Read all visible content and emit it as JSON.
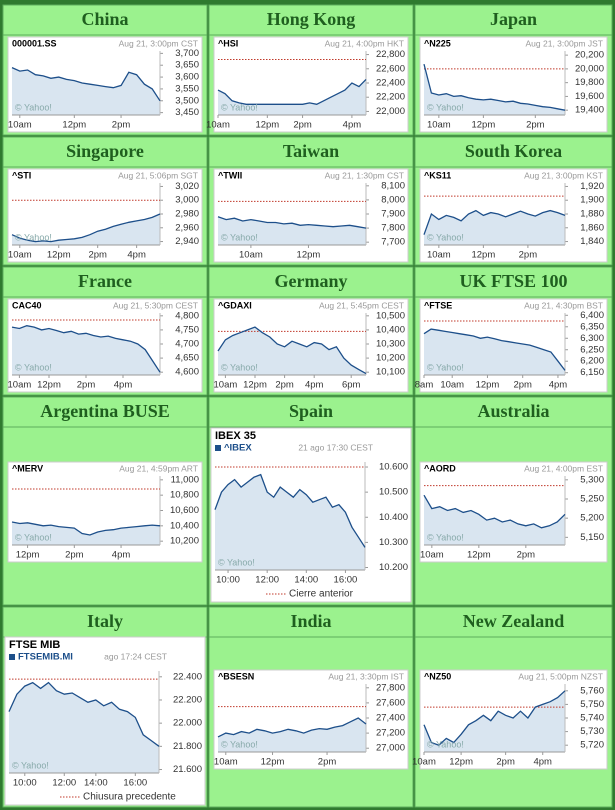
{
  "chart_data": [
    {
      "type": "line",
      "title": "China",
      "symbol": "000001.SS",
      "subtitle": "Aug 21, 3:00pm CST",
      "watermark": "© Yahoo!",
      "values": [
        3640,
        3625,
        3630,
        3610,
        3605,
        3595,
        3600,
        3590,
        3585,
        3575,
        3570,
        3565,
        3560,
        3555,
        3565,
        3620,
        3610,
        3570,
        3550,
        3500
      ],
      "ylim": [
        3440,
        3710
      ],
      "yticks": [
        {
          "value": 3700,
          "label": "3,700"
        },
        {
          "value": 3650,
          "label": "3,650"
        },
        {
          "value": 3600,
          "label": "3,600"
        },
        {
          "value": 3550,
          "label": "3,550"
        },
        {
          "value": 3500,
          "label": "3,500"
        },
        {
          "value": 3450,
          "label": "3,450"
        }
      ],
      "xlim": [
        0,
        19
      ],
      "xticks": [
        {
          "value": 1,
          "label": "10am"
        },
        {
          "value": 8,
          "label": "12pm"
        },
        {
          "value": 14,
          "label": "2pm"
        }
      ],
      "color": "#1d4f8a"
    },
    {
      "type": "line",
      "title": "Hong Kong",
      "symbol": "^HSI",
      "subtitle": "Aug 21, 4:00pm HKT",
      "watermark": "© Yahoo!",
      "values": [
        22300,
        22250,
        22150,
        22120,
        22100,
        22100,
        22100,
        22100,
        22100,
        22100,
        22100,
        22100,
        22100,
        22120,
        22100,
        22150,
        22200,
        22250,
        22300,
        22400,
        22350,
        22450
      ],
      "ylim": [
        21950,
        22850
      ],
      "yticks": [
        {
          "value": 22800,
          "label": "22,800"
        },
        {
          "value": 22600,
          "label": "22,600"
        },
        {
          "value": 22400,
          "label": "22,400"
        },
        {
          "value": 22200,
          "label": "22,200"
        },
        {
          "value": 22000,
          "label": "22,000"
        }
      ],
      "xlim": [
        0,
        21
      ],
      "xticks": [
        {
          "value": 0,
          "label": "10am"
        },
        {
          "value": 7,
          "label": "12pm"
        },
        {
          "value": 12,
          "label": "2pm"
        },
        {
          "value": 19,
          "label": "4pm"
        }
      ],
      "prev_close": 22730,
      "color": "#1d4f8a"
    },
    {
      "type": "line",
      "title": "Japan",
      "symbol": "^N225",
      "subtitle": "Aug 21, 3:00pm JST",
      "watermark": "© Yahoo!",
      "values": [
        20070,
        19650,
        19620,
        19640,
        19600,
        19610,
        19580,
        19560,
        19550,
        19560,
        19540,
        19520,
        19530,
        19500,
        19490,
        19470,
        19450,
        19440,
        19420,
        19400
      ],
      "ylim": [
        19330,
        20260
      ],
      "yticks": [
        {
          "value": 20200,
          "label": "20,200"
        },
        {
          "value": 20000,
          "label": "20,000"
        },
        {
          "value": 19800,
          "label": "19,800"
        },
        {
          "value": 19600,
          "label": "19,600"
        },
        {
          "value": 19400,
          "label": "19,400"
        }
      ],
      "xlim": [
        0,
        19
      ],
      "xticks": [
        {
          "value": 2,
          "label": "10am"
        },
        {
          "value": 8,
          "label": "12pm"
        },
        {
          "value": 15,
          "label": "2pm"
        }
      ],
      "prev_close": 20000,
      "color": "#1d4f8a"
    },
    {
      "type": "line",
      "title": "Singapore",
      "symbol": "^STI",
      "subtitle": "Aug 21, 5:06pm SGT",
      "watermark": "© Yahoo!",
      "values": [
        2950,
        2945,
        2942,
        2940,
        2941,
        2940,
        2942,
        2943,
        2944,
        2946,
        2950,
        2955,
        2958,
        2962,
        2965,
        2968,
        2970,
        2972,
        2975,
        2980
      ],
      "ylim": [
        2935,
        3025
      ],
      "yticks": [
        {
          "value": 3020,
          "label": "3,020"
        },
        {
          "value": 3000,
          "label": "3,000"
        },
        {
          "value": 2980,
          "label": "2,980"
        },
        {
          "value": 2960,
          "label": "2,960"
        },
        {
          "value": 2940,
          "label": "2,940"
        }
      ],
      "xlim": [
        0,
        19
      ],
      "xticks": [
        {
          "value": 1,
          "label": "10am"
        },
        {
          "value": 6,
          "label": "12pm"
        },
        {
          "value": 11,
          "label": "2pm"
        },
        {
          "value": 16,
          "label": "4pm"
        }
      ],
      "prev_close": 3000,
      "color": "#1d4f8a"
    },
    {
      "type": "line",
      "title": "Taiwan",
      "symbol": "^TWII",
      "subtitle": "Aug 21, 1:30pm CST",
      "watermark": "© Yahoo!",
      "values": [
        7880,
        7860,
        7870,
        7850,
        7860,
        7850,
        7840,
        7840,
        7830,
        7835,
        7820,
        7825,
        7820,
        7815,
        7810,
        7815,
        7820,
        7810,
        7800
      ],
      "ylim": [
        7680,
        8120
      ],
      "yticks": [
        {
          "value": 8100,
          "label": "8,100"
        },
        {
          "value": 8000,
          "label": "8,000"
        },
        {
          "value": 7900,
          "label": "7,900"
        },
        {
          "value": 7800,
          "label": "7,800"
        },
        {
          "value": 7700,
          "label": "7,700"
        }
      ],
      "xlim": [
        0,
        18
      ],
      "xticks": [
        {
          "value": 4,
          "label": "10am"
        },
        {
          "value": 11,
          "label": "12pm"
        }
      ],
      "prev_close": 7990,
      "color": "#1d4f8a"
    },
    {
      "type": "line",
      "title": "South Korea",
      "symbol": "^KS11",
      "subtitle": "Aug 21, 3:00pm KST",
      "watermark": "© Yahoo!",
      "values": [
        1850,
        1880,
        1872,
        1878,
        1875,
        1870,
        1880,
        1885,
        1878,
        1882,
        1880,
        1876,
        1880,
        1884,
        1880,
        1877,
        1882,
        1885,
        1882,
        1878
      ],
      "ylim": [
        1835,
        1925
      ],
      "yticks": [
        {
          "value": 1920,
          "label": "1,920"
        },
        {
          "value": 1900,
          "label": "1,900"
        },
        {
          "value": 1880,
          "label": "1,880"
        },
        {
          "value": 1860,
          "label": "1,860"
        },
        {
          "value": 1840,
          "label": "1,840"
        }
      ],
      "xlim": [
        0,
        19
      ],
      "xticks": [
        {
          "value": 2,
          "label": "10am"
        },
        {
          "value": 8,
          "label": "12pm"
        },
        {
          "value": 14,
          "label": "2pm"
        }
      ],
      "prev_close": 1906,
      "color": "#1d4f8a"
    },
    {
      "type": "line",
      "title": "France",
      "symbol": "CAC40",
      "subtitle": "Aug 21, 5:30pm CEST",
      "watermark": "© Yahoo!",
      "values": [
        4760,
        4755,
        4765,
        4760,
        4750,
        4755,
        4748,
        4740,
        4745,
        4735,
        4738,
        4730,
        4725,
        4728,
        4720,
        4715,
        4710,
        4700,
        4680,
        4640,
        4600
      ],
      "ylim": [
        4590,
        4810
      ],
      "yticks": [
        {
          "value": 4800,
          "label": "4,800"
        },
        {
          "value": 4750,
          "label": "4,750"
        },
        {
          "value": 4700,
          "label": "4,700"
        },
        {
          "value": 4650,
          "label": "4,650"
        },
        {
          "value": 4600,
          "label": "4,600"
        }
      ],
      "xlim": [
        0,
        20
      ],
      "xticks": [
        {
          "value": 1,
          "label": "10am"
        },
        {
          "value": 5,
          "label": "12pm"
        },
        {
          "value": 10,
          "label": "2pm"
        },
        {
          "value": 15,
          "label": "4pm"
        }
      ],
      "prev_close": 4785,
      "color": "#1d4f8a"
    },
    {
      "type": "line",
      "title": "Germany",
      "symbol": "^GDAXI",
      "subtitle": "Aug 21, 5:45pm CEST",
      "watermark": "© Yahoo!",
      "values": [
        10250,
        10330,
        10360,
        10380,
        10400,
        10420,
        10380,
        10350,
        10300,
        10280,
        10320,
        10300,
        10280,
        10310,
        10300,
        10260,
        10280,
        10200,
        10150,
        10120,
        10090
      ],
      "ylim": [
        10080,
        10520
      ],
      "yticks": [
        {
          "value": 10500,
          "label": "10,500"
        },
        {
          "value": 10400,
          "label": "10,400"
        },
        {
          "value": 10300,
          "label": "10,300"
        },
        {
          "value": 10200,
          "label": "10,200"
        },
        {
          "value": 10100,
          "label": "10,100"
        }
      ],
      "xlim": [
        0,
        20
      ],
      "xticks": [
        {
          "value": 1,
          "label": "10am"
        },
        {
          "value": 5,
          "label": "12pm"
        },
        {
          "value": 9,
          "label": "2pm"
        },
        {
          "value": 13,
          "label": "4pm"
        },
        {
          "value": 18,
          "label": "6pm"
        }
      ],
      "prev_close": 10390,
      "color": "#1d4f8a"
    },
    {
      "type": "line",
      "title": "UK FTSE 100",
      "symbol": "^FTSE",
      "subtitle": "Aug 21, 4:30pm BST",
      "watermark": "© Yahoo!",
      "values": [
        6320,
        6340,
        6335,
        6330,
        6325,
        6320,
        6315,
        6310,
        6300,
        6305,
        6298,
        6290,
        6285,
        6280,
        6275,
        6270,
        6260,
        6250,
        6240,
        6200,
        6160
      ],
      "ylim": [
        6140,
        6410
      ],
      "yticks": [
        {
          "value": 6400,
          "label": "6,400"
        },
        {
          "value": 6350,
          "label": "6,350"
        },
        {
          "value": 6300,
          "label": "6,300"
        },
        {
          "value": 6250,
          "label": "6,250"
        },
        {
          "value": 6200,
          "label": "6,200"
        },
        {
          "value": 6150,
          "label": "6,150"
        }
      ],
      "xlim": [
        0,
        20
      ],
      "xticks": [
        {
          "value": 0,
          "label": "8am"
        },
        {
          "value": 4,
          "label": "10am"
        },
        {
          "value": 9,
          "label": "12pm"
        },
        {
          "value": 14,
          "label": "2pm"
        },
        {
          "value": 19,
          "label": "4pm"
        }
      ],
      "prev_close": 6375,
      "color": "#1d4f8a"
    },
    {
      "type": "line",
      "title": "Argentina BUSE",
      "symbol": "^MERV",
      "subtitle": "Aug 21, 4:59pm ART",
      "watermark": "© Yahoo!",
      "values": [
        10450,
        10430,
        10440,
        10420,
        10400,
        10410,
        10390,
        10380,
        10370,
        10300,
        10280,
        10320,
        10340,
        10350,
        10370,
        10380,
        10390,
        10400,
        10410,
        10400
      ],
      "ylim": [
        10150,
        11050
      ],
      "yticks": [
        {
          "value": 11000,
          "label": "11,000"
        },
        {
          "value": 10800,
          "label": "10,800"
        },
        {
          "value": 10600,
          "label": "10,600"
        },
        {
          "value": 10400,
          "label": "10,400"
        },
        {
          "value": 10200,
          "label": "10,200"
        }
      ],
      "xlim": [
        0,
        19
      ],
      "xticks": [
        {
          "value": 2,
          "label": "12pm"
        },
        {
          "value": 8,
          "label": "2pm"
        },
        {
          "value": 14,
          "label": "4pm"
        }
      ],
      "prev_close": 10880,
      "color": "#1d4f8a"
    },
    {
      "type": "line",
      "title": "Spain",
      "index_name": "IBEX 35",
      "symbol": "^IBEX",
      "subtitle": "21 ago 17:30 CEST",
      "watermark": "© Yahoo!",
      "legend": "Cierre anterior",
      "values": [
        10430,
        10500,
        10530,
        10550,
        10520,
        10540,
        10560,
        10570,
        10500,
        10480,
        10520,
        10500,
        10480,
        10510,
        10490,
        10460,
        10470,
        10480,
        10440,
        10450,
        10420,
        10360,
        10320,
        10280
      ],
      "ylim": [
        10190,
        10620
      ],
      "yticks": [
        {
          "value": 10600,
          "label": "10.600"
        },
        {
          "value": 10500,
          "label": "10.500"
        },
        {
          "value": 10400,
          "label": "10.400"
        },
        {
          "value": 10300,
          "label": "10.300"
        },
        {
          "value": 10200,
          "label": "10.200"
        }
      ],
      "xlim": [
        0,
        23
      ],
      "xticks": [
        {
          "value": 2,
          "label": "10:00"
        },
        {
          "value": 8,
          "label": "12:00"
        },
        {
          "value": 14,
          "label": "14:00"
        },
        {
          "value": 20,
          "label": "16:00"
        }
      ],
      "prev_close": 10600,
      "color": "#1d4f8a"
    },
    {
      "type": "line",
      "title": "Australia",
      "symbol": "^AORD",
      "subtitle": "Aug 21, 4:00pm EST",
      "watermark": "© Yahoo!",
      "values": [
        5260,
        5225,
        5230,
        5220,
        5225,
        5215,
        5220,
        5210,
        5195,
        5200,
        5190,
        5195,
        5185,
        5180,
        5185,
        5175,
        5180,
        5190,
        5210
      ],
      "ylim": [
        5130,
        5310
      ],
      "yticks": [
        {
          "value": 5300,
          "label": "5,300"
        },
        {
          "value": 5250,
          "label": "5,250"
        },
        {
          "value": 5200,
          "label": "5,200"
        },
        {
          "value": 5150,
          "label": "5,150"
        }
      ],
      "xlim": [
        0,
        18
      ],
      "xticks": [
        {
          "value": 1,
          "label": "10am"
        },
        {
          "value": 7,
          "label": "12pm"
        },
        {
          "value": 13,
          "label": "2pm"
        }
      ],
      "prev_close": 5285,
      "color": "#1d4f8a"
    },
    {
      "type": "line",
      "title": "Italy",
      "index_name": "FTSE MIB",
      "symbol": "FTSEMIB.MI",
      "subtitle": "ago 17:24 CEST",
      "watermark": "© Yahoo!",
      "legend": "Chiusura precedente",
      "values": [
        22100,
        22250,
        22320,
        22350,
        22300,
        22350,
        22280,
        22250,
        22260,
        22220,
        22180,
        22200,
        22150,
        22180,
        22120,
        22100,
        22050,
        21900,
        21850,
        21800
      ],
      "ylim": [
        21570,
        22450
      ],
      "yticks": [
        {
          "value": 22400,
          "label": "22.400"
        },
        {
          "value": 22200,
          "label": "22.200"
        },
        {
          "value": 22000,
          "label": "22.000"
        },
        {
          "value": 21800,
          "label": "21.800"
        },
        {
          "value": 21600,
          "label": "21.600"
        }
      ],
      "xlim": [
        0,
        19
      ],
      "xticks": [
        {
          "value": 2,
          "label": "10:00"
        },
        {
          "value": 7,
          "label": "12:00"
        },
        {
          "value": 11,
          "label": "14:00"
        },
        {
          "value": 16,
          "label": "16:00"
        }
      ],
      "prev_close": 22380,
      "color": "#1d4f8a"
    },
    {
      "type": "line",
      "title": "India",
      "symbol": "^BSESN",
      "subtitle": "Aug 21, 3:30pm IST",
      "watermark": "© Yahoo!",
      "values": [
        27150,
        27200,
        27180,
        27220,
        27200,
        27250,
        27230,
        27200,
        27220,
        27250,
        27230,
        27200,
        27240,
        27260,
        27250,
        27280,
        27300,
        27350,
        27400,
        27320
      ],
      "ylim": [
        26950,
        27850
      ],
      "yticks": [
        {
          "value": 27800,
          "label": "27,800"
        },
        {
          "value": 27600,
          "label": "27,600"
        },
        {
          "value": 27400,
          "label": "27,400"
        },
        {
          "value": 27200,
          "label": "27,200"
        },
        {
          "value": 27000,
          "label": "27,000"
        }
      ],
      "xlim": [
        0,
        19
      ],
      "xticks": [
        {
          "value": 1,
          "label": "10am"
        },
        {
          "value": 7,
          "label": "12pm"
        },
        {
          "value": 14,
          "label": "2pm"
        }
      ],
      "prev_close": 27550,
      "color": "#1d4f8a"
    },
    {
      "type": "line",
      "title": "New Zealand",
      "symbol": "^NZ50",
      "subtitle": "Aug 21, 5:00pm NZST",
      "watermark": "© Yahoo!",
      "values": [
        5735,
        5722,
        5720,
        5725,
        5722,
        5728,
        5735,
        5738,
        5742,
        5738,
        5745,
        5742,
        5740,
        5745,
        5740,
        5748,
        5750,
        5752,
        5755,
        5760
      ],
      "ylim": [
        5715,
        5765
      ],
      "yticks": [
        {
          "value": 5760,
          "label": "5,760"
        },
        {
          "value": 5750,
          "label": "5,750"
        },
        {
          "value": 5740,
          "label": "5,740"
        },
        {
          "value": 5730,
          "label": "5,730"
        },
        {
          "value": 5720,
          "label": "5,720"
        }
      ],
      "xlim": [
        0,
        19
      ],
      "xticks": [
        {
          "value": 0,
          "label": "10am"
        },
        {
          "value": 5,
          "label": "12pm"
        },
        {
          "value": 11,
          "label": "2pm"
        },
        {
          "value": 16,
          "label": "4pm"
        }
      ],
      "prev_close": 5748,
      "color": "#1d4f8a"
    }
  ]
}
